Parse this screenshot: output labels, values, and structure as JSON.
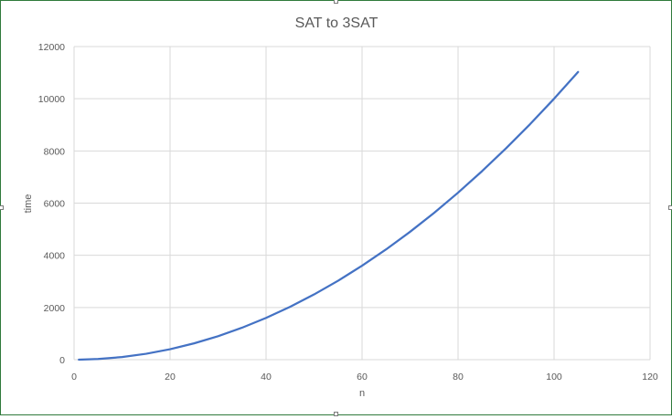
{
  "chart_data": {
    "type": "line",
    "title": "SAT to 3SAT",
    "xlabel": "n",
    "ylabel": "time",
    "xlim": [
      0,
      120
    ],
    "ylim": [
      0,
      12000
    ],
    "x_ticks": [
      0,
      20,
      40,
      60,
      80,
      100,
      120
    ],
    "y_ticks": [
      0,
      2000,
      4000,
      6000,
      8000,
      10000,
      12000
    ],
    "grid": true,
    "legend": "none",
    "series": [
      {
        "color": "#4472c4",
        "x": [
          1,
          5,
          10,
          15,
          20,
          25,
          30,
          35,
          40,
          45,
          50,
          55,
          60,
          65,
          70,
          75,
          80,
          85,
          90,
          95,
          100,
          105
        ],
        "y": [
          1,
          25,
          100,
          225,
          400,
          625,
          900,
          1225,
          1600,
          2025,
          2500,
          3025,
          3600,
          4225,
          4900,
          5625,
          6400,
          7225,
          8100,
          9025,
          10000,
          11025
        ]
      }
    ]
  },
  "colors": {
    "grid": "#d9d9d9",
    "axis_text": "#595959",
    "title": "#595959",
    "border": "#2f7a3b"
  }
}
